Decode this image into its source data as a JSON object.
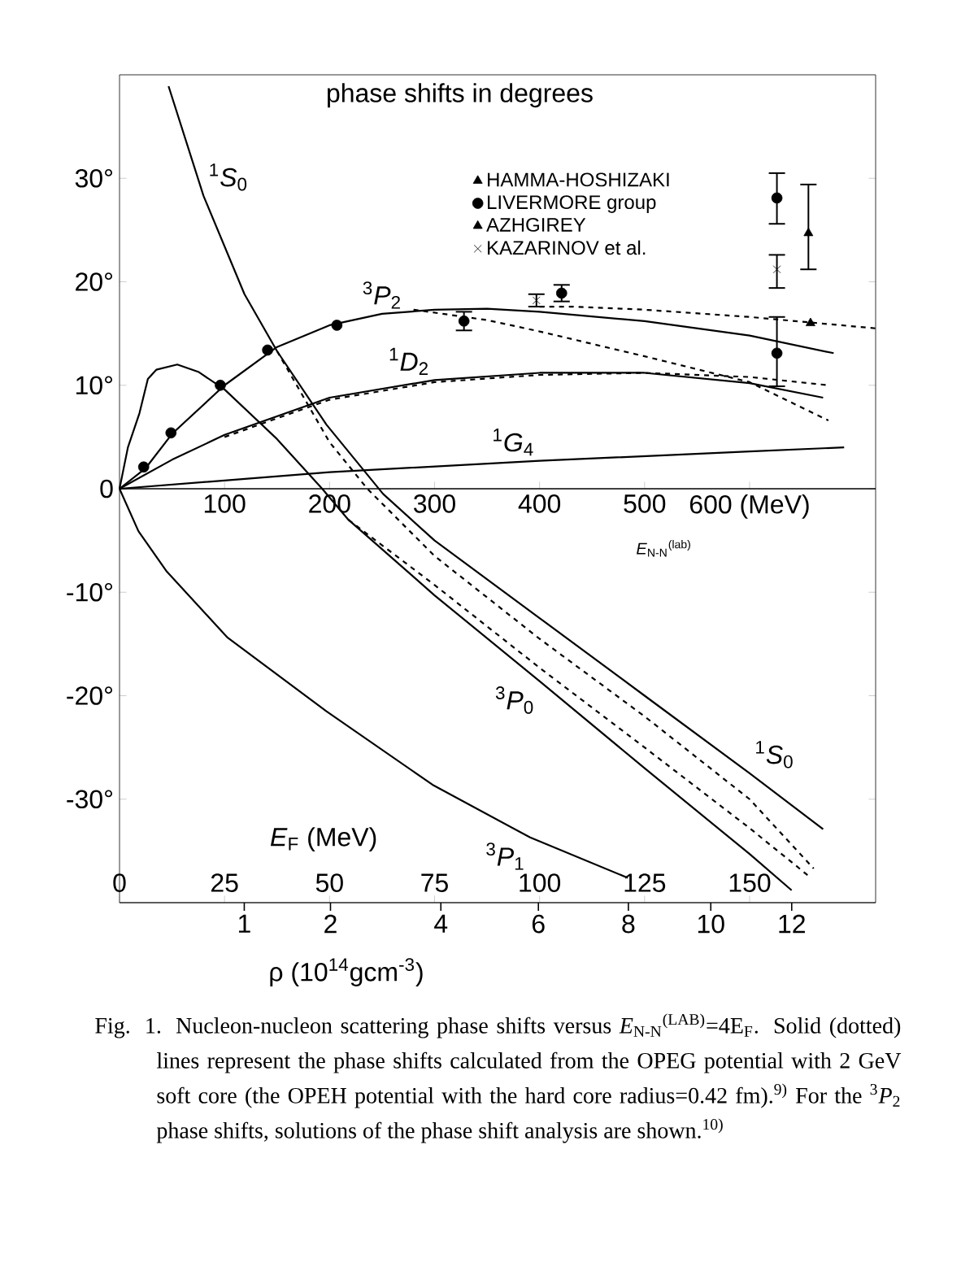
{
  "chart_data": {
    "type": "line",
    "title": "phase shifts in degrees",
    "xlabel": "*E*$_{N-N}$$^{(lab)}$",
    "xlim": [
      0,
      720
    ],
    "xticks": [
      100,
      200,
      300,
      400,
      500,
      {
        "value": 600,
        "label": "600 (MeV)"
      }
    ],
    "x2label": "*E*$_{F}$ (MeV)",
    "x2lim": [
      0,
      180
    ],
    "x2ticks": [
      0,
      25,
      50,
      75,
      100,
      125,
      150
    ],
    "ylim": [
      -40,
      40
    ],
    "yticks": [
      {
        "value": -30,
        "label": "-30°"
      },
      {
        "value": -20,
        "label": "-20°"
      },
      {
        "value": -10,
        "label": "-10°"
      },
      0,
      {
        "value": 10,
        "label": "10°"
      },
      {
        "value": 20,
        "label": "20°"
      },
      {
        "value": 30,
        "label": "30°"
      }
    ],
    "legend": "top",
    "series": [
      {
        "name": "$^{1}$*S*$_{0}$",
        "color": "#000000",
        "line_style": "solid",
        "x": [
          46.7,
          80,
          119,
          150,
          197,
          251,
          300,
          400,
          500,
          600,
          670
        ],
        "values": [
          38.9,
          28.3,
          18.8,
          13.3,
          6.2,
          -0.5,
          -5,
          -12.5,
          -20,
          -27.5,
          -32.9
        ]
      },
      {
        "color": "#000000",
        "line_style": "dashed",
        "x": [
          150,
          200,
          236,
          300,
          400,
          500,
          600,
          661
        ],
        "values": [
          13.3,
          4.5,
          0,
          -6.5,
          -14.5,
          -22,
          -30,
          -36.7
        ]
      },
      {
        "name": "$^{3}$*P*$_{0}$",
        "color": "#000000",
        "line_style": "solid",
        "x": [
          0,
          8,
          19,
          27,
          35,
          55,
          75,
          100,
          150,
          193,
          218,
          300,
          400,
          500,
          600,
          640
        ],
        "values": [
          0,
          4,
          7.3,
          10.6,
          11.5,
          12,
          11.3,
          9.6,
          4.8,
          0,
          -3,
          -10.3,
          -18.6,
          -27,
          -35.3,
          -38.8
        ]
      },
      {
        "color": "#000000",
        "line_style": "dashed",
        "x": [
          218,
          300,
          400,
          500,
          600,
          656
        ],
        "values": [
          -3,
          -9.3,
          -17.3,
          -25,
          -32.8,
          -37.4
        ]
      },
      {
        "name": "$^{3}$*P*$_{1}$",
        "color": "#000000",
        "line_style": "solid",
        "x": [
          0,
          18,
          45,
          103,
          197,
          298,
          391,
          484
        ],
        "values": [
          0,
          -4.1,
          -8,
          -14.4,
          -21.5,
          -28.6,
          -33.7,
          -37.6
        ]
      },
      {
        "name": "$^{1}$*D*$_{2}$",
        "color": "#000000",
        "line_style": "solid",
        "x": [
          0,
          50,
          100,
          200,
          300,
          400,
          500,
          600,
          670
        ],
        "values": [
          0,
          2.8,
          5.2,
          8.8,
          10.5,
          11.2,
          11.2,
          10.2,
          8.8
        ]
      },
      {
        "color": "#000000",
        "line_style": "dashed",
        "x": [
          100,
          200,
          300,
          400,
          500,
          600,
          675
        ],
        "values": [
          5,
          8.6,
          10.3,
          11,
          11.2,
          10.8,
          10
        ]
      },
      {
        "name": "$^{1}$*G*$_{4}$",
        "color": "#000000",
        "line_style": "solid",
        "x": [
          0,
          200,
          400,
          600,
          690
        ],
        "values": [
          0,
          1.6,
          2.7,
          3.6,
          4
        ]
      },
      {
        "name": "$^{3}$*P*$_{2}$",
        "color": "#000000",
        "line_style": "solid",
        "x": [
          0,
          25,
          50,
          100,
          150,
          200,
          250,
          300,
          350,
          400,
          500,
          600,
          680
        ],
        "values": [
          0,
          2,
          5.3,
          10,
          13.7,
          15.8,
          16.9,
          17.3,
          17.4,
          17.1,
          16.2,
          14.8,
          13.1
        ]
      },
      {
        "color": "#000000",
        "line_style": "dashed",
        "x": [
          280,
          350,
          400,
          500,
          600,
          675
        ],
        "values": [
          17.3,
          16.3,
          15.2,
          12.8,
          10.3,
          6.6
        ]
      },
      {
        "color": "#000000",
        "line_style": "dashed",
        "x": [
          400,
          430,
          500,
          600,
          720
        ],
        "values": [
          17.6,
          17.6,
          17.3,
          16.6,
          15.5
        ]
      },
      {
        "type": "scatter",
        "color": "#000000",
        "marker": "circle",
        "x": [
          23,
          49,
          96,
          141,
          207
        ],
        "values": [
          2.1,
          5.4,
          10,
          13.4,
          15.8
        ]
      },
      {
        "type": "scatter",
        "name": "HAMMA-HOSHIZAKI",
        "color": "#000000",
        "marker": "triangle",
        "x": [
          658
        ],
        "values": [
          16
        ]
      },
      {
        "type": "scatter",
        "name": "LIVERMORE group",
        "color": "#000000",
        "marker": "circle",
        "x": [
          328,
          421,
          626,
          626
        ],
        "values": [
          16.2,
          18.9,
          28.1,
          13.1
        ],
        "errors": [
          [
            15.3,
            17.1
          ],
          [
            18.1,
            19.7
          ],
          [
            25.6,
            30.5
          ],
          [
            9.9,
            16.6
          ]
        ]
      },
      {
        "type": "scatter",
        "name": "AZHGIREY",
        "color": "#000000",
        "marker": "triangle",
        "x": [
          656
        ],
        "values": [
          24.7
        ],
        "errors": [
          [
            21.2,
            29.4
          ]
        ]
      },
      {
        "type": "scatter",
        "name": "KAZARINOV et al.",
        "color": "#000000",
        "marker": "cross",
        "x": [
          397,
          626
        ],
        "values": [
          18.2,
          21.2
        ],
        "errors": [
          [
            17.6,
            18.8
          ],
          [
            19.4,
            22.6
          ]
        ]
      }
    ],
    "annotations": [
      "1",
      "2",
      "4",
      "6",
      "8",
      "10",
      "12",
      "ρ (10$^{14}$gcm$^{-3}$)",
      "Fig. 1. Nucleon-nucleon scattering phase shifts versus *E*$_{N-N}$$^{(LAB)}$=4E$_{F}$. Solid (dotted) lines represent the phase shifts calculated from the OPEG potential with 2 GeV soft core (the OPEH potential with the hard core radius=0.42 fm).$^{9)}$ For the $^{3}$*P*$_{2}$ phase shifts, solutions of the phase shift analysis are shown.$^{10)}$"
    ]
  }
}
